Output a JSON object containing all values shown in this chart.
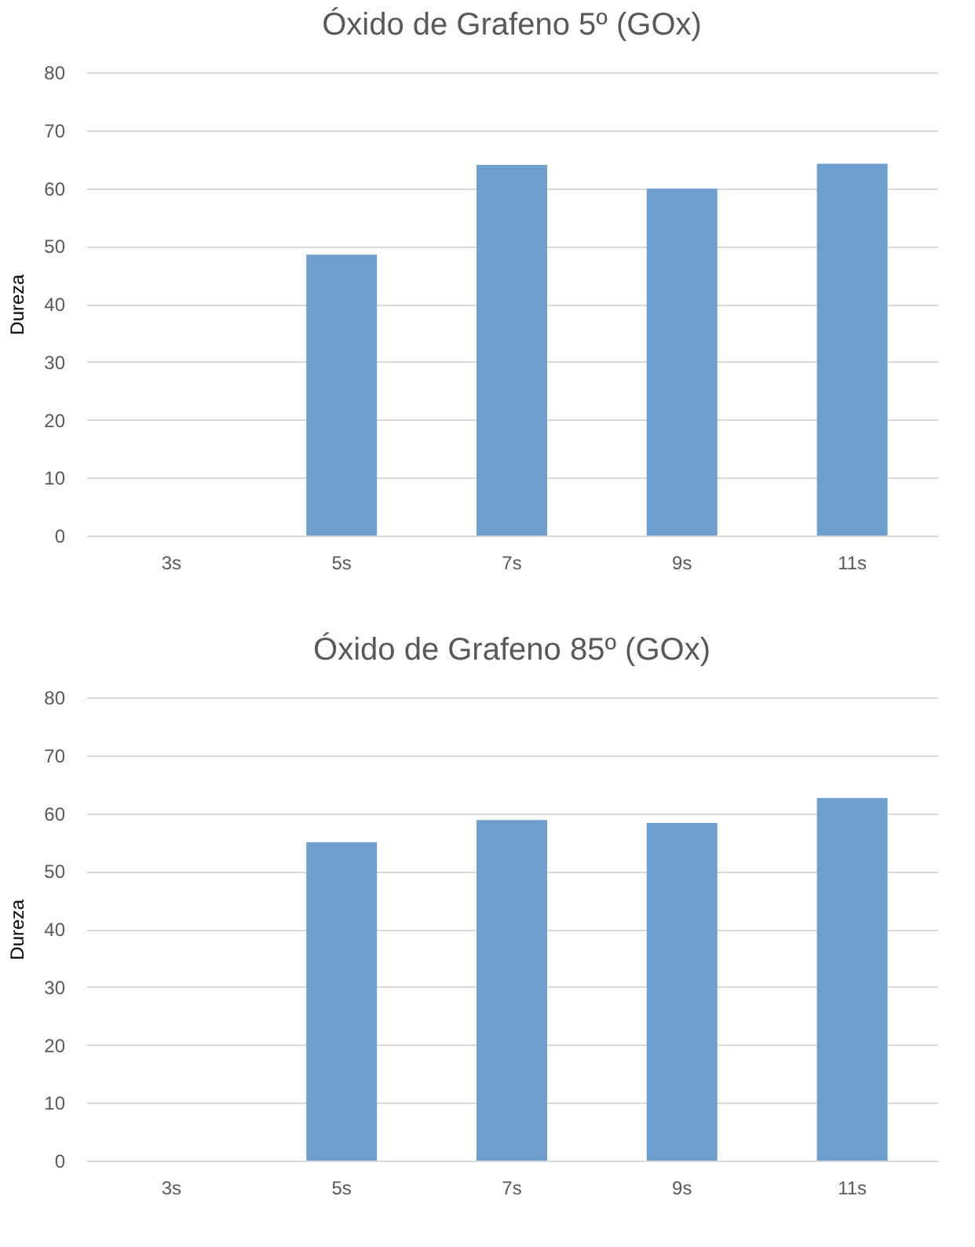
{
  "chart_data": [
    {
      "type": "bar",
      "title": "Óxido de Grafeno 5º (GOx)",
      "ylabel": "Dureza",
      "categories": [
        "3s",
        "5s",
        "7s",
        "9s",
        "11s"
      ],
      "values": [
        null,
        48.5,
        64,
        59.9,
        64.2
      ],
      "color": "#6f9fce",
      "ylim": [
        0,
        80
      ],
      "yticks": [
        0,
        10,
        20,
        30,
        40,
        50,
        60,
        70,
        80
      ],
      "grid": "y"
    },
    {
      "type": "bar",
      "title": "Óxido de Grafeno 85º (GOx)",
      "ylabel": "Dureza",
      "categories": [
        "3s",
        "5s",
        "7s",
        "9s",
        "11s"
      ],
      "values": [
        null,
        55,
        58.8,
        58.3,
        62.6
      ],
      "color": "#6f9fce",
      "ylim": [
        0,
        80
      ],
      "yticks": [
        0,
        10,
        20,
        30,
        40,
        50,
        60,
        70,
        80
      ],
      "grid": "y"
    }
  ]
}
